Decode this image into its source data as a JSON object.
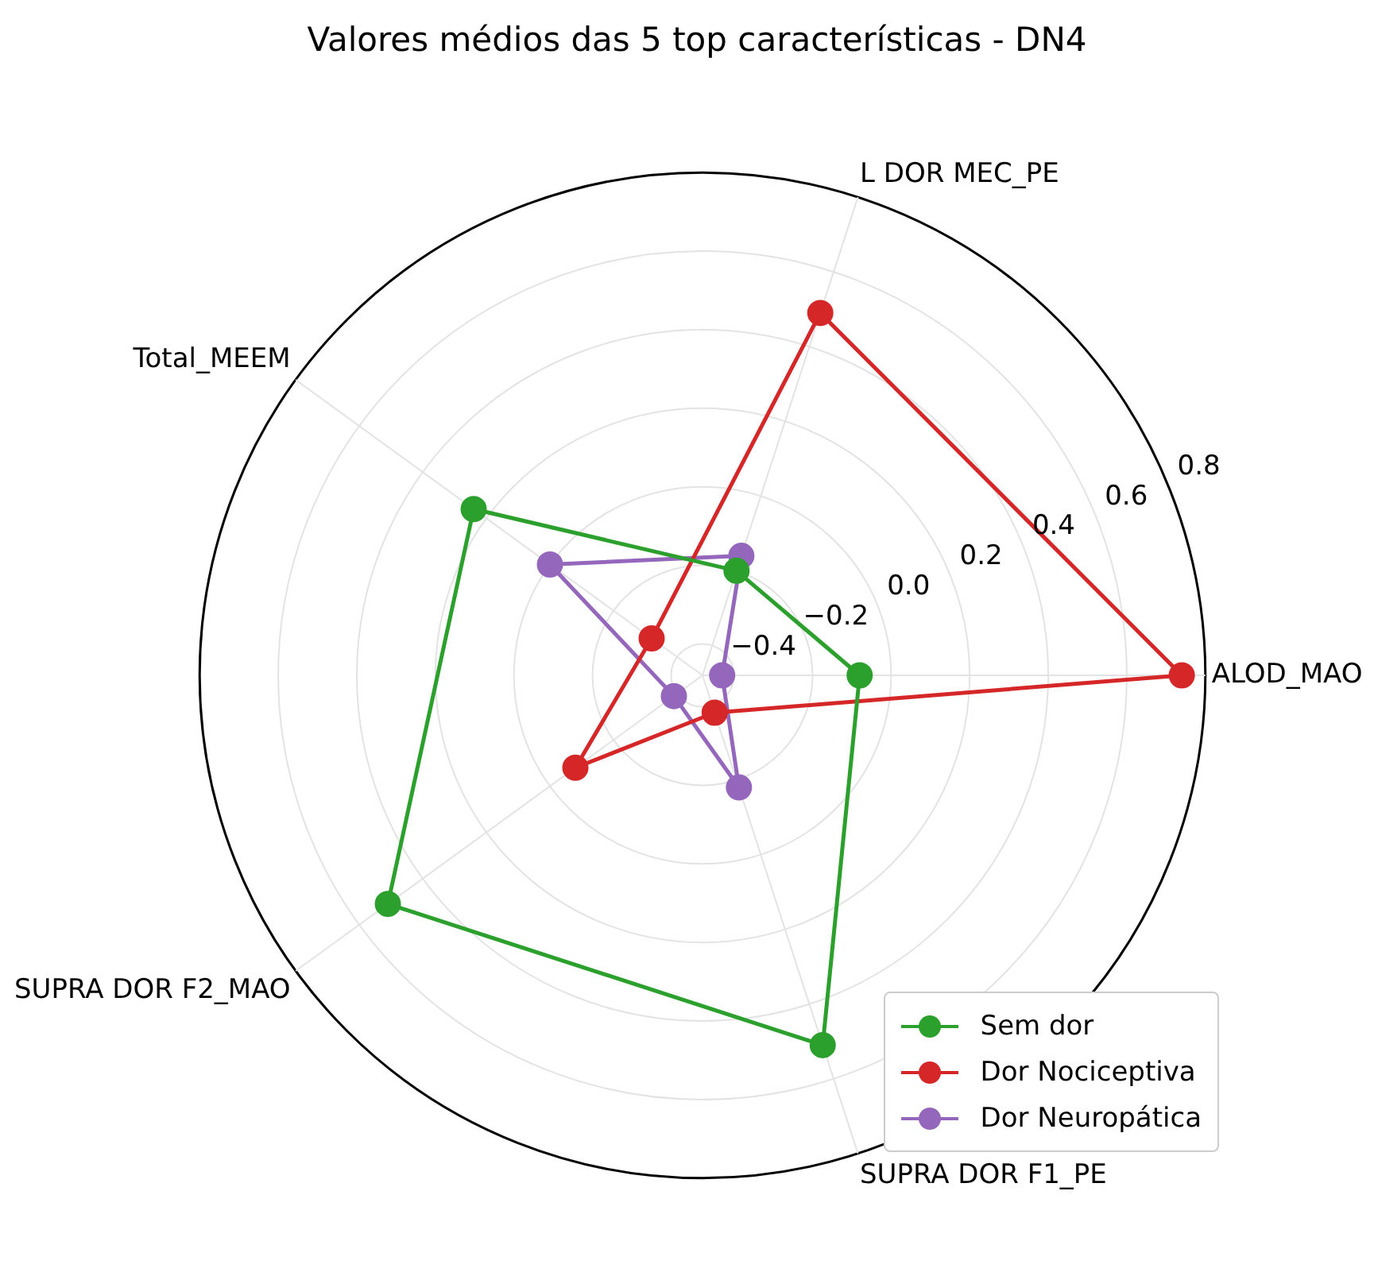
{
  "chart_data": {
    "type": "radar",
    "title": "Valores médios das 5 top características - DN4",
    "categories": [
      "L DOR MEC_PE",
      "ALOD_MAO",
      "SUPRA DOR F1_PE",
      "SUPRA DOR F2_MAO",
      "Total_MEEM"
    ],
    "series": [
      {
        "name": "Sem dor",
        "color": "#2ca02c",
        "values": [
          -0.2,
          -0.08,
          0.51,
          0.51,
          0.24
        ]
      },
      {
        "name": "Dor Nociceptiva",
        "color": "#d62728",
        "values": [
          0.49,
          0.74,
          -0.38,
          -0.08,
          -0.32
        ]
      },
      {
        "name": "Dor Neuropática",
        "color": "#9467bd",
        "values": [
          -0.16,
          -0.43,
          -0.18,
          -0.39,
          0.0
        ]
      }
    ],
    "ylim": [
      -0.48,
      0.8
    ],
    "yticks": [
      {
        "value": -0.4,
        "label": "−0.4"
      },
      {
        "value": -0.2,
        "label": "−0.2"
      },
      {
        "value": 0.0,
        "label": "0.0"
      },
      0.2,
      0.4,
      0.6,
      0.8
    ],
    "grid": true,
    "legend": "bottom right",
    "marker": "circle",
    "line_style": "solid"
  }
}
